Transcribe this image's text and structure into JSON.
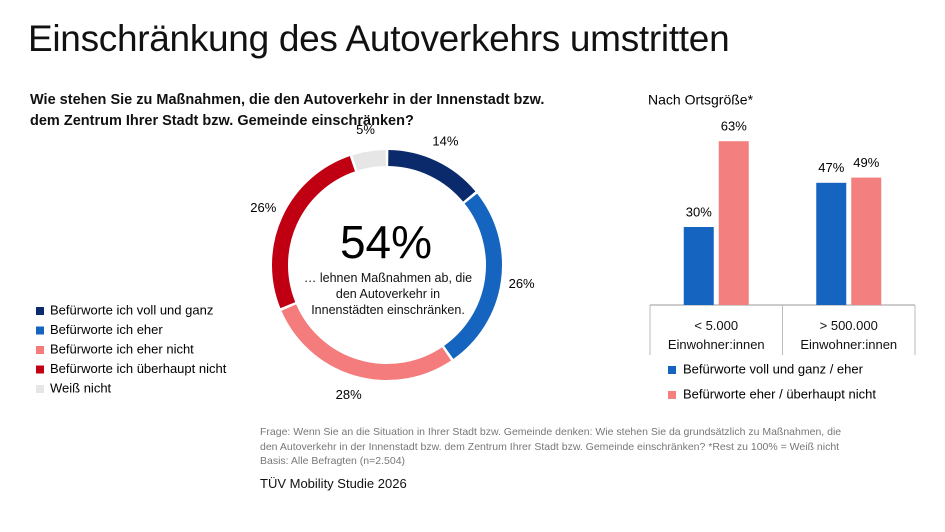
{
  "title": "Einschränkung des Autoverkehrs umstritten",
  "question": "Wie stehen Sie zu Maßnahmen, die den Autoverkehr in der Innenstadt bzw. dem Zentrum Ihrer Stadt bzw. Gemeinde einschränken?",
  "footnote": [
    "Frage: Wenn Sie an die Situation in Ihrer Stadt bzw. Gemeinde denken: Wie stehen Sie da grundsätzlich zu Maßnahmen, die den Autoverkehr in der Innenstadt bzw. dem Zentrum Ihrer Stadt bzw. Gemeinde einschränken? *Rest zu 100% = Weiß nicht",
    "Basis: Alle Befragten (n=2.504)"
  ],
  "source": "TÜV Mobility Studie 2026",
  "chart_data": [
    {
      "type": "donut",
      "categories": [
        "Befürworte ich voll und ganz",
        "Befürworte ich eher",
        "Befürworte ich eher nicht",
        "Befürworte ich überhaupt nicht",
        "Weiß nicht"
      ],
      "colors": [
        "#0b2a6b",
        "#1565c0",
        "#f47c7c",
        "#c00012",
        "#e6e6e6"
      ],
      "values": [
        14,
        26,
        28,
        26,
        5
      ],
      "value_labels": [
        "14%",
        "26%",
        "28%",
        "26%",
        "5%"
      ],
      "center_label": "54%",
      "center_text": "… lehnen Maßnahmen ab, die den Autoverkehr in Innenstädten einschränken."
    },
    {
      "type": "bar",
      "title": "Nach Ortsgröße*",
      "categories": [
        "< 5.000\nEinwohner:innen",
        "> 500.000\nEinwohner:innen"
      ],
      "series": [
        {
          "name": "Befürworte voll und ganz / eher",
          "color": "#1565c0",
          "values": [
            30,
            47
          ],
          "value_labels": [
            "30%",
            "47%"
          ]
        },
        {
          "name": "Befürworte eher / überhaupt nicht",
          "color": "#f47f7f",
          "values": [
            63,
            49
          ],
          "value_labels": [
            "63%",
            "49%"
          ]
        }
      ]
    }
  ]
}
